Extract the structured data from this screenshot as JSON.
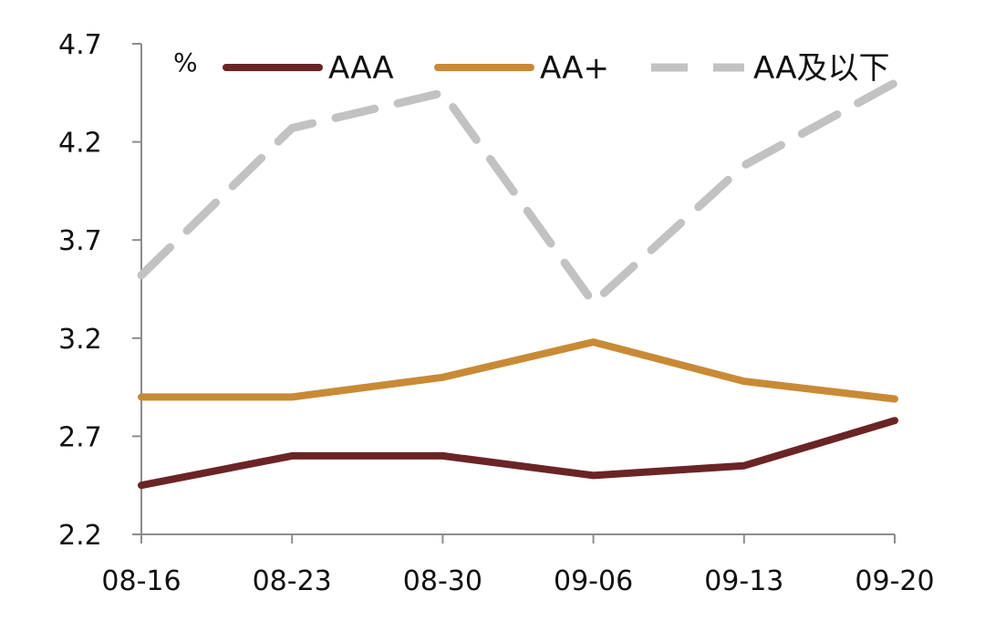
{
  "chart_data": {
    "type": "line",
    "unit_label": "%",
    "categories": [
      "08-16",
      "08-23",
      "08-30",
      "09-06",
      "09-13",
      "09-20"
    ],
    "ylim": [
      2.2,
      4.7
    ],
    "yticks": [
      "4.7",
      "4.2",
      "3.7",
      "3.2",
      "2.7",
      "2.2"
    ],
    "grid": false,
    "legend_position": "top",
    "series": [
      {
        "name": "AAA",
        "color": "#6b2426",
        "dash": "solid",
        "values": [
          2.45,
          2.6,
          2.6,
          2.5,
          2.55,
          2.78
        ]
      },
      {
        "name": "AA+",
        "color": "#c98a36",
        "dash": "solid",
        "values": [
          2.9,
          2.9,
          3.0,
          3.18,
          2.98,
          2.89
        ]
      },
      {
        "name": "AA及以下",
        "color": "#c2c2c2",
        "dash": "dashed",
        "values": [
          3.52,
          4.27,
          4.45,
          3.38,
          4.08,
          4.5
        ]
      }
    ]
  }
}
